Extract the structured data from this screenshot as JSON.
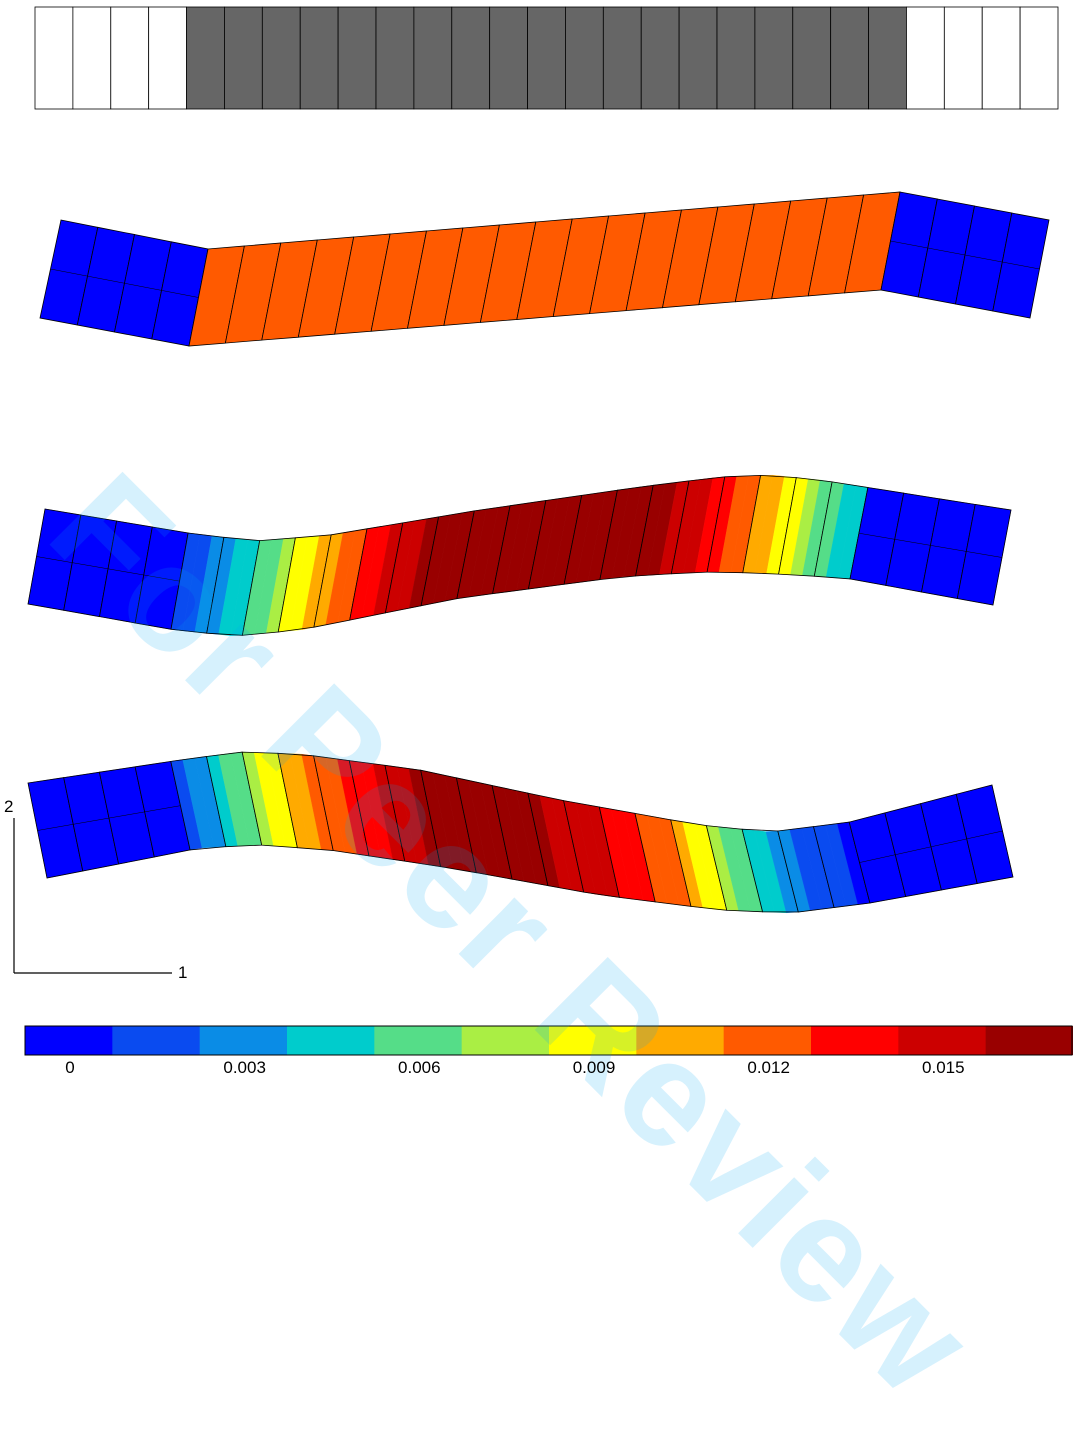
{
  "watermark": "For Peer Review",
  "axis": {
    "horizontal_label": "1",
    "vertical_label": "2"
  },
  "colorbar": {
    "colors": [
      "#0000ff",
      "#0a4bf0",
      "#0a8ce6",
      "#00cccc",
      "#55dd88",
      "#aaee44",
      "#ffff00",
      "#ffaa00",
      "#ff5a00",
      "#ff0000",
      "#cc0000",
      "#990000"
    ],
    "tick_labels": [
      "0",
      "0.003",
      "0.006",
      "0.009",
      "0.012",
      "0.015"
    ],
    "range": [
      0,
      0.018
    ]
  },
  "panels": [
    {
      "name": "undeformed-mesh",
      "elements": 27,
      "active_color": "#666666",
      "inactive_color": "#ffffff"
    },
    {
      "name": "deformed-uniform",
      "elements": 27,
      "active_color": "#ff5a00",
      "inactive_color": "#0000ff"
    },
    {
      "name": "deformed-s-shape",
      "elements": 27,
      "inactive_color": "#0000ff"
    },
    {
      "name": "deformed-double-wave",
      "elements": 27,
      "inactive_color": "#0000ff"
    }
  ]
}
